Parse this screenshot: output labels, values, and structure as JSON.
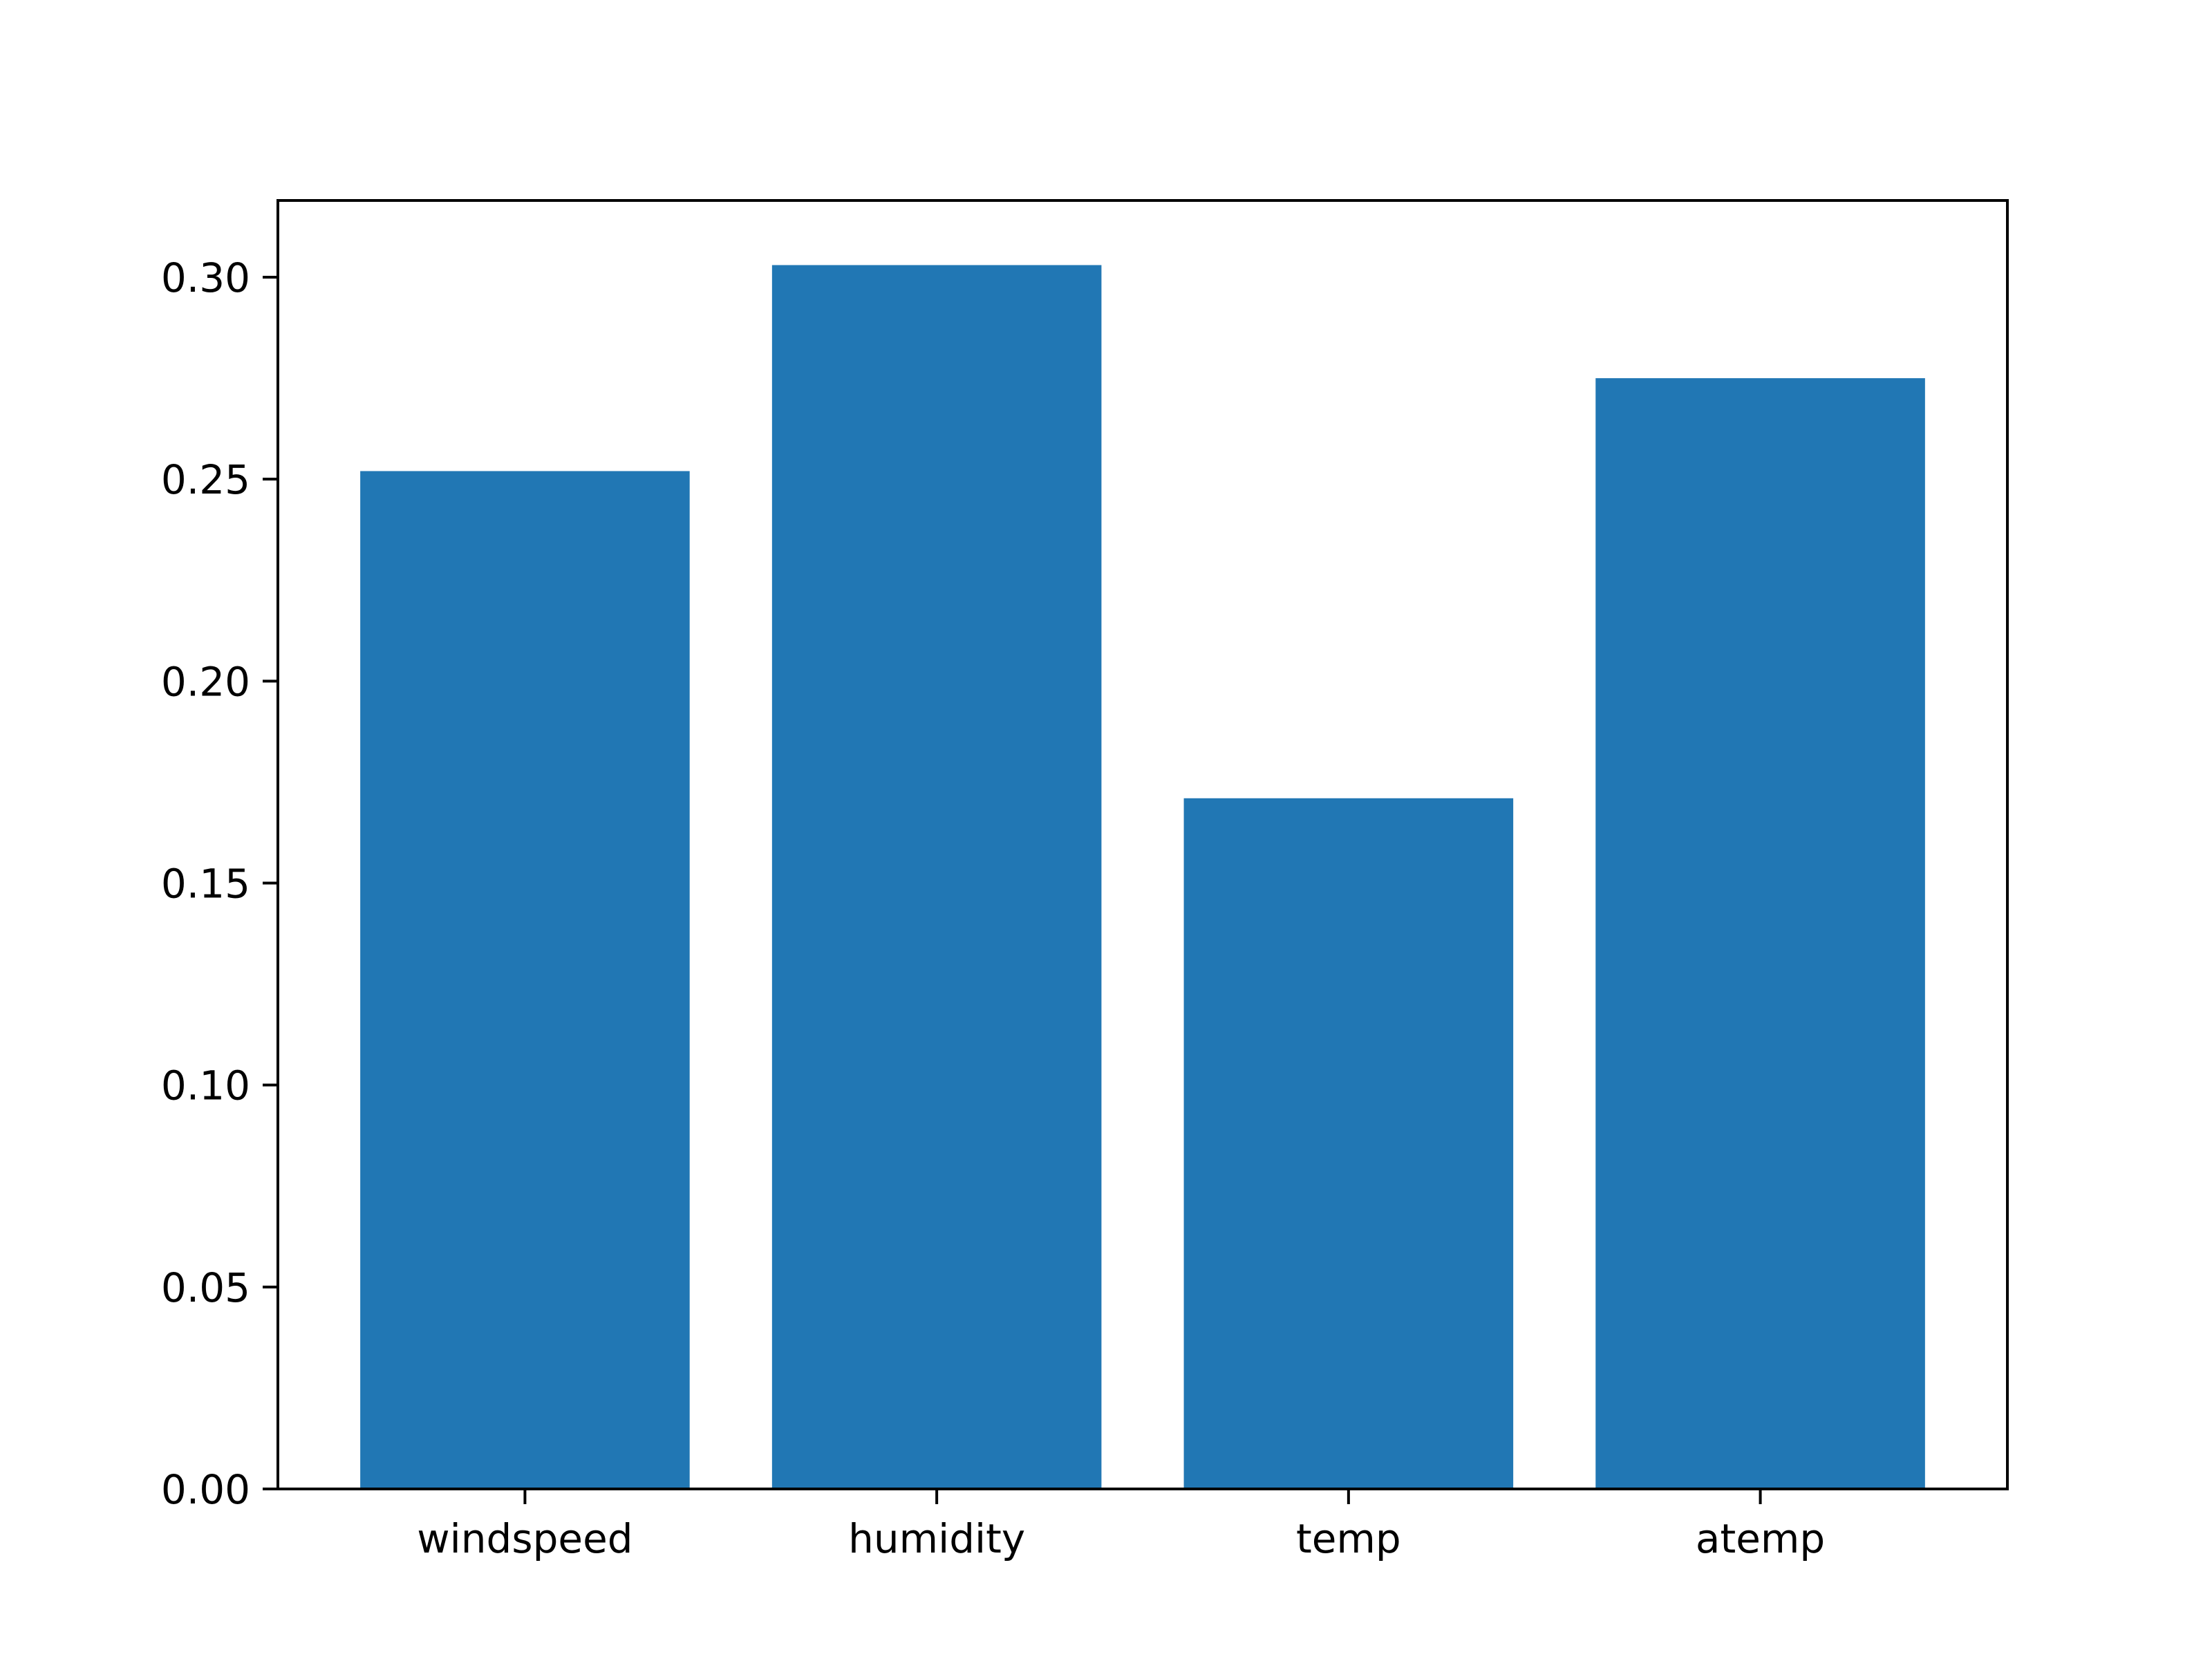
{
  "chart_data": {
    "type": "bar",
    "categories": [
      "windspeed",
      "humidity",
      "temp",
      "atemp"
    ],
    "values": [
      0.252,
      0.303,
      0.171,
      0.275
    ],
    "title": "",
    "xlabel": "",
    "ylabel": "",
    "ylim": [
      0,
      0.319
    ],
    "yticks": [
      "0.00",
      "0.05",
      "0.10",
      "0.15",
      "0.20",
      "0.25",
      "0.30"
    ],
    "grid": false,
    "legend": "none",
    "colors": {
      "bar": "#2177b4",
      "axis": "#000000",
      "background": "#ffffff"
    }
  }
}
